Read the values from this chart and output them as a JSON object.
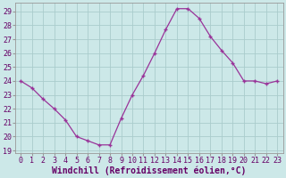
{
  "x": [
    0,
    1,
    2,
    3,
    4,
    5,
    6,
    7,
    8,
    9,
    10,
    11,
    12,
    13,
    14,
    15,
    16,
    17,
    18,
    19,
    20,
    21,
    22,
    23
  ],
  "y": [
    24.0,
    23.5,
    22.7,
    22.0,
    21.2,
    20.0,
    19.7,
    19.4,
    19.4,
    21.3,
    23.0,
    24.4,
    26.0,
    27.7,
    29.2,
    29.2,
    28.5,
    27.2,
    26.2,
    25.3,
    24.0,
    24.0,
    23.8,
    24.0
  ],
  "line_color": "#993399",
  "marker": "P",
  "marker_size": 2.5,
  "bg_color": "#cce8e8",
  "plot_bg_color": "#cce8e8",
  "grid_color": "#aacccc",
  "xlabel": "Windchill (Refroidissement éolien,°C)",
  "ylabel": "",
  "xlim": [
    -0.5,
    23.5
  ],
  "ylim_min": 18.8,
  "ylim_max": 29.6,
  "yticks": [
    19,
    20,
    21,
    22,
    23,
    24,
    25,
    26,
    27,
    28,
    29
  ],
  "xticks": [
    0,
    1,
    2,
    3,
    4,
    5,
    6,
    7,
    8,
    9,
    10,
    11,
    12,
    13,
    14,
    15,
    16,
    17,
    18,
    19,
    20,
    21,
    22,
    23
  ],
  "tick_fontsize": 6.0,
  "xlabel_fontsize": 7.0,
  "label_color": "#660066"
}
